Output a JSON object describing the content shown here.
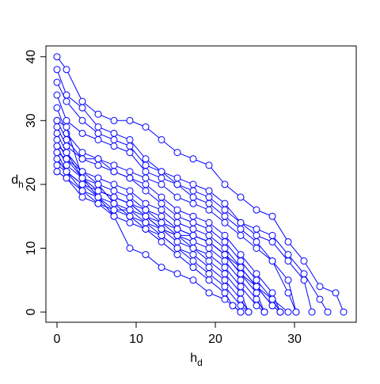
{
  "chart_data": {
    "type": "line",
    "xlabel": "h",
    "xlabel_sub": "d",
    "ylabel": "d",
    "ylabel_sub": "h",
    "color": "#0000ff",
    "xlim": [
      -1.4,
      37.8
    ],
    "ylim": [
      -1.6,
      41.7
    ],
    "xticks": [
      0,
      10,
      20,
      30
    ],
    "yticks": [
      0,
      10,
      20,
      30,
      40
    ],
    "series": [
      {
        "x": [
          0,
          1.2,
          3.2,
          5.2,
          7.2,
          9.2,
          11.2,
          13.2,
          15.2,
          17.2,
          19.2,
          21.2,
          23.2,
          25.2,
          27.2,
          29.2,
          31.2,
          33.2,
          35.2,
          36.2
        ],
        "values": [
          40,
          38,
          33,
          31,
          30,
          30,
          29,
          27,
          25,
          24,
          23,
          20,
          18,
          16,
          15,
          11,
          8,
          4,
          3,
          0
        ]
      },
      {
        "x": [
          0,
          1.2,
          3.2,
          5.2,
          7.2,
          9.2,
          11.2,
          13.2,
          15.2,
          17.2,
          19.2,
          21.2,
          23.2,
          25.2,
          27.2,
          29.2,
          31.2,
          33.2,
          34.2
        ],
        "values": [
          38,
          34,
          32,
          29,
          28,
          27,
          24,
          22,
          21,
          20,
          19,
          17,
          14,
          13,
          12,
          9,
          6,
          2,
          0
        ]
      },
      {
        "x": [
          0,
          1.2,
          3.2,
          5.2,
          7.2,
          9.2,
          11.2,
          13.2,
          15.2,
          17.2,
          19.2,
          21.2,
          23.2,
          25.2,
          27.2,
          29.2,
          31.2,
          32.2
        ],
        "values": [
          36,
          33,
          30,
          28,
          27,
          26,
          23,
          22,
          20,
          19,
          18,
          16,
          14,
          12,
          11,
          8,
          5,
          0
        ]
      },
      {
        "x": [
          0,
          1.2,
          3.2,
          5.2,
          7.2,
          9.2,
          11.2,
          13.2,
          15.2,
          17.2,
          19.2,
          21.2,
          23.2,
          25.2,
          27.2,
          29.2,
          30.2
        ],
        "values": [
          34,
          30,
          28,
          27,
          26,
          25,
          22,
          21,
          20,
          18,
          17,
          15,
          13,
          11,
          8,
          3,
          0
        ]
      },
      {
        "x": [
          0,
          1.2,
          3.2,
          5.2,
          7.2,
          9.2,
          11.2,
          13.2,
          15.2,
          17.2,
          19.2,
          21.2,
          23.2,
          25.2,
          27.2,
          29.2,
          30.2
        ],
        "values": [
          32,
          28,
          25,
          24,
          23,
          22,
          21,
          20,
          18,
          17,
          16,
          14,
          12,
          10,
          8,
          5,
          0
        ]
      },
      {
        "x": [
          0,
          1.2,
          3.2,
          5.2,
          7.2,
          9.2,
          11.2,
          13.2,
          15.2,
          17.2,
          19.2,
          21.2,
          23.2,
          25.2,
          27.2,
          28.2
        ],
        "values": [
          30,
          27,
          24,
          24,
          22,
          21,
          20,
          18,
          16,
          15,
          14,
          12,
          9,
          6,
          3,
          0
        ]
      },
      {
        "x": [
          0,
          1.2,
          3.2,
          5.2,
          7.2,
          9.2,
          11.2,
          13.2,
          15.2,
          17.2,
          19.2,
          21.2,
          23.2,
          25.2,
          27.2,
          28.2
        ],
        "values": [
          29,
          26,
          24,
          23,
          22,
          21,
          19,
          17,
          15,
          14,
          13,
          11,
          8,
          5,
          2,
          0
        ]
      },
      {
        "x": [
          0,
          1.2,
          3.2,
          5.2,
          7.2,
          9.2,
          11.2,
          13.2,
          15.2,
          17.2,
          19.2,
          21.2,
          23.2,
          25.2,
          27.2,
          28.2
        ],
        "values": [
          28,
          25,
          22,
          21,
          20,
          19,
          17,
          16,
          14,
          13,
          12,
          10,
          7,
          4,
          1,
          0
        ]
      },
      {
        "x": [
          0,
          1.2,
          3.2,
          5.2,
          7.2,
          9.2,
          11.2,
          13.2,
          15.2,
          17.2,
          19.2,
          21.2,
          23.2,
          25.2,
          26.2
        ],
        "values": [
          27,
          24,
          21,
          20,
          19,
          18,
          16,
          15,
          13,
          12,
          11,
          9,
          6,
          3,
          0
        ]
      },
      {
        "x": [
          0,
          1.2,
          3.2,
          5.2,
          7.2,
          9.2,
          11.2,
          13.2,
          15.2,
          17.2,
          19.2,
          21.2,
          23.2,
          25.2,
          26.2
        ],
        "values": [
          26,
          23,
          21,
          19,
          18,
          17,
          16,
          14,
          12,
          11,
          10,
          8,
          5,
          2,
          0
        ]
      },
      {
        "x": [
          0,
          1.2,
          3.2,
          5.2,
          7.2,
          9.2,
          11.2,
          13.2,
          15.2,
          17.2,
          19.2,
          21.2,
          23.2,
          25.2,
          26.2
        ],
        "values": [
          25,
          22,
          20,
          19,
          18,
          17,
          15,
          13,
          12,
          10,
          9,
          7,
          4,
          1,
          0
        ]
      },
      {
        "x": [
          0,
          1.2,
          3.2,
          5.2,
          7.2,
          9.2,
          11.2,
          13.2,
          15.2,
          17.2,
          19.2,
          21.2,
          23.2,
          24.2
        ],
        "values": [
          24,
          22,
          20,
          18,
          17,
          16,
          15,
          13,
          11,
          10,
          8,
          6,
          3,
          0
        ]
      },
      {
        "x": [
          0,
          1.2,
          3.2,
          5.2,
          7.2,
          9.2,
          11.2,
          13.2,
          15.2,
          17.2,
          19.2,
          21.2,
          23.2,
          24.2
        ],
        "values": [
          23,
          22,
          19,
          18,
          16,
          16,
          14,
          12,
          10,
          9,
          7,
          5,
          2,
          0
        ]
      },
      {
        "x": [
          0,
          1.2,
          3.2,
          5.2,
          7.2,
          9.2,
          11.2,
          13.2,
          15.2,
          17.2,
          19.2,
          21.2,
          23.2,
          24.2
        ],
        "values": [
          22,
          21,
          19,
          17,
          16,
          15,
          13,
          12,
          10,
          8,
          6,
          4,
          1,
          0
        ]
      },
      {
        "x": [
          0,
          1.2,
          3.2,
          5.2,
          7.2,
          9.2,
          11.2,
          13.2,
          15.2,
          17.2,
          19.2,
          21.2,
          22.2,
          23.2
        ],
        "values": [
          22,
          21,
          18,
          17,
          15,
          14,
          13,
          11,
          9,
          7,
          5,
          3,
          1,
          0
        ]
      },
      {
        "x": [
          0,
          1.2,
          3.2,
          5.2,
          7.2,
          9.2,
          11.2,
          13.2,
          15.2,
          17.2,
          19.2,
          21.2,
          22.2,
          23.2
        ],
        "values": [
          30,
          29,
          21,
          18,
          15,
          10,
          9,
          7,
          6,
          5,
          3,
          2,
          1,
          0
        ]
      },
      {
        "x": [
          0,
          1.2,
          3.2,
          5.2,
          7.2,
          9.2,
          11.2,
          13.2,
          15.2,
          17.2,
          19.2,
          21.2,
          23.2,
          25.2,
          27.2,
          29.2
        ],
        "values": [
          25,
          24,
          22,
          20,
          17,
          15,
          14,
          13,
          12,
          12,
          11,
          9,
          7,
          4,
          2,
          0
        ]
      },
      {
        "x": [
          0,
          1.2,
          3.2,
          5.2,
          7.2,
          9.2,
          11.2,
          13.2,
          15.2,
          17.2,
          19.2,
          21.2,
          23.2,
          25.2,
          27.2,
          28.2
        ],
        "values": [
          26,
          25,
          21,
          19,
          18,
          17,
          15,
          14,
          13,
          12,
          11,
          9,
          6,
          4,
          1,
          0
        ]
      }
    ]
  }
}
